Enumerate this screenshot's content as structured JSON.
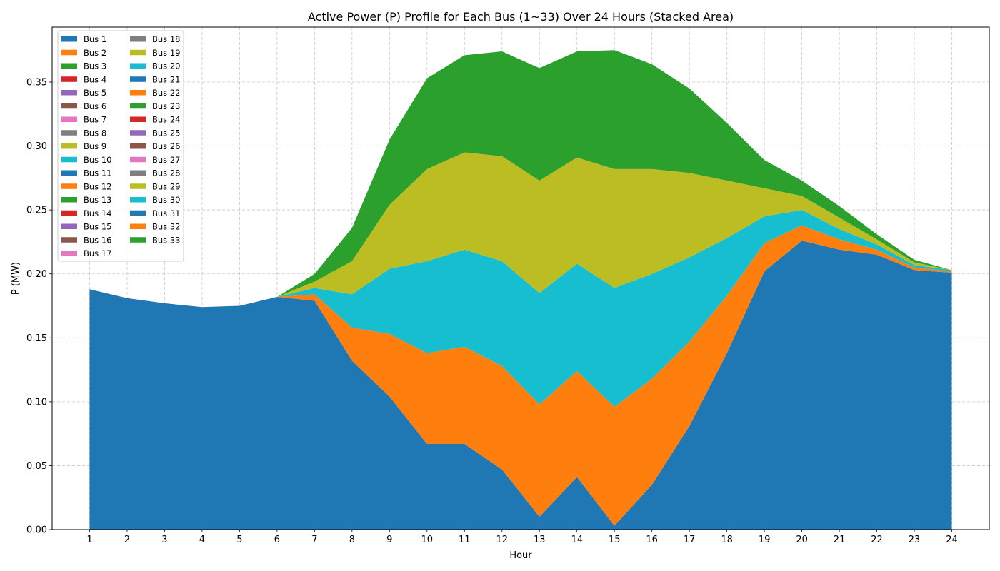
{
  "chart_data": {
    "type": "area",
    "stacked": true,
    "title": "Active Power (P) Profile for Each Bus (1~33) Over 24 Hours (Stacked Area)",
    "xlabel": "Hour",
    "ylabel": "P (MW)",
    "x": [
      1,
      2,
      3,
      4,
      5,
      6,
      7,
      8,
      9,
      10,
      11,
      12,
      13,
      14,
      15,
      16,
      17,
      18,
      19,
      20,
      21,
      22,
      23,
      24
    ],
    "xlim": [
      0,
      25
    ],
    "ylim": [
      0,
      0.393
    ],
    "yticks": [
      0.0,
      0.05,
      0.1,
      0.15,
      0.2,
      0.25,
      0.3,
      0.35
    ],
    "ytick_labels": [
      "0.00",
      "0.05",
      "0.10",
      "0.15",
      "0.20",
      "0.25",
      "0.30",
      "0.35"
    ],
    "grid": true,
    "legend_position": "top-left",
    "legend_columns": 2,
    "palette": [
      "#1f77b4",
      "#ff7f0e",
      "#2ca02c",
      "#d62728",
      "#9467bd",
      "#8c564b",
      "#e377c2",
      "#7f7f7f",
      "#bcbd22",
      "#17becf"
    ],
    "series": [
      {
        "name": "Bus 1",
        "values": [
          0.188,
          0.181,
          0.177,
          0.174,
          0.175,
          0.182,
          0.179,
          0.132,
          0.104,
          0.067,
          0.067,
          0.047,
          0.01,
          0.041,
          0.003,
          0.035,
          0.081,
          0.138,
          0.202,
          0.226,
          0.219,
          0.215,
          0.203,
          0.201
        ]
      },
      {
        "name": "Bus 2",
        "values": [
          0,
          0,
          0,
          0,
          0,
          0,
          0.005,
          0.026,
          0.049,
          0.071,
          0.076,
          0.081,
          0.088,
          0.083,
          0.093,
          0.083,
          0.066,
          0.045,
          0.022,
          0.012,
          0.008,
          0.004,
          0.002,
          0.001
        ]
      },
      {
        "name": "Bus 3",
        "values": [
          0,
          0,
          0,
          0,
          0,
          0,
          0,
          0,
          0,
          0,
          0,
          0,
          0,
          0,
          0,
          0,
          0,
          0,
          0,
          0,
          0,
          0,
          0,
          0
        ]
      },
      {
        "name": "Bus 4",
        "values": [
          0,
          0,
          0,
          0,
          0,
          0,
          0,
          0,
          0,
          0,
          0,
          0,
          0,
          0,
          0,
          0,
          0,
          0,
          0,
          0,
          0,
          0,
          0,
          0
        ]
      },
      {
        "name": "Bus 5",
        "values": [
          0,
          0,
          0,
          0,
          0,
          0,
          0,
          0,
          0,
          0,
          0,
          0,
          0,
          0,
          0,
          0,
          0,
          0,
          0,
          0,
          0,
          0,
          0,
          0
        ]
      },
      {
        "name": "Bus 6",
        "values": [
          0,
          0,
          0,
          0,
          0,
          0,
          0,
          0,
          0,
          0,
          0,
          0,
          0,
          0,
          0,
          0,
          0,
          0,
          0,
          0,
          0,
          0,
          0,
          0
        ]
      },
      {
        "name": "Bus 7",
        "values": [
          0,
          0,
          0,
          0,
          0,
          0,
          0,
          0,
          0,
          0,
          0,
          0,
          0,
          0,
          0,
          0,
          0,
          0,
          0,
          0,
          0,
          0,
          0,
          0
        ]
      },
      {
        "name": "Bus 8",
        "values": [
          0,
          0,
          0,
          0,
          0,
          0,
          0,
          0,
          0,
          0,
          0,
          0,
          0,
          0,
          0,
          0,
          0,
          0,
          0,
          0,
          0,
          0,
          0,
          0
        ]
      },
      {
        "name": "Bus 9",
        "values": [
          0,
          0,
          0,
          0,
          0,
          0,
          0,
          0,
          0,
          0,
          0,
          0,
          0,
          0,
          0,
          0,
          0,
          0,
          0,
          0,
          0,
          0,
          0,
          0
        ]
      },
      {
        "name": "Bus 10",
        "values": [
          0,
          0,
          0,
          0,
          0,
          0,
          0,
          0,
          0,
          0,
          0,
          0,
          0,
          0,
          0,
          0,
          0,
          0,
          0,
          0,
          0,
          0,
          0,
          0
        ]
      },
      {
        "name": "Bus 11",
        "values": [
          0,
          0,
          0,
          0,
          0,
          0,
          0,
          0,
          0,
          0,
          0,
          0,
          0,
          0,
          0,
          0,
          0,
          0,
          0,
          0,
          0,
          0,
          0,
          0
        ]
      },
      {
        "name": "Bus 12",
        "values": [
          0,
          0,
          0,
          0,
          0,
          0,
          0,
          0,
          0,
          0,
          0,
          0,
          0,
          0,
          0,
          0,
          0,
          0,
          0,
          0,
          0,
          0,
          0,
          0
        ]
      },
      {
        "name": "Bus 13",
        "values": [
          0,
          0,
          0,
          0,
          0,
          0,
          0,
          0,
          0,
          0,
          0,
          0,
          0,
          0,
          0,
          0,
          0,
          0,
          0,
          0,
          0,
          0,
          0,
          0
        ]
      },
      {
        "name": "Bus 14",
        "values": [
          0,
          0,
          0,
          0,
          0,
          0,
          0,
          0,
          0,
          0,
          0,
          0,
          0,
          0,
          0,
          0,
          0,
          0,
          0,
          0,
          0,
          0,
          0,
          0
        ]
      },
      {
        "name": "Bus 15",
        "values": [
          0,
          0,
          0,
          0,
          0,
          0,
          0,
          0,
          0,
          0,
          0,
          0,
          0,
          0,
          0,
          0,
          0,
          0,
          0,
          0,
          0,
          0,
          0,
          0
        ]
      },
      {
        "name": "Bus 16",
        "values": [
          0,
          0,
          0,
          0,
          0,
          0,
          0,
          0,
          0,
          0,
          0,
          0,
          0,
          0,
          0,
          0,
          0,
          0,
          0,
          0,
          0,
          0,
          0,
          0
        ]
      },
      {
        "name": "Bus 17",
        "values": [
          0,
          0,
          0,
          0,
          0,
          0,
          0,
          0,
          0,
          0,
          0,
          0,
          0,
          0,
          0,
          0,
          0,
          0,
          0,
          0,
          0,
          0,
          0,
          0
        ]
      },
      {
        "name": "Bus 18",
        "values": [
          0,
          0,
          0,
          0,
          0,
          0,
          0,
          0,
          0,
          0,
          0,
          0,
          0,
          0,
          0,
          0,
          0,
          0,
          0,
          0,
          0,
          0,
          0,
          0
        ]
      },
      {
        "name": "Bus 19",
        "values": [
          0,
          0,
          0,
          0,
          0,
          0,
          0,
          0,
          0,
          0,
          0,
          0,
          0,
          0,
          0,
          0,
          0,
          0,
          0,
          0,
          0,
          0,
          0,
          0
        ]
      },
      {
        "name": "Bus 20",
        "values": [
          0,
          0,
          0,
          0,
          0,
          0,
          0.005,
          0.026,
          0.051,
          0.072,
          0.076,
          0.082,
          0.087,
          0.084,
          0.093,
          0.082,
          0.066,
          0.045,
          0.021,
          0.012,
          0.008,
          0.004,
          0.002,
          0.001
        ]
      },
      {
        "name": "Bus 21",
        "values": [
          0,
          0,
          0,
          0,
          0,
          0,
          0,
          0,
          0,
          0,
          0,
          0,
          0,
          0,
          0,
          0,
          0,
          0,
          0,
          0,
          0,
          0,
          0,
          0
        ]
      },
      {
        "name": "Bus 22",
        "values": [
          0,
          0,
          0,
          0,
          0,
          0,
          0,
          0,
          0,
          0,
          0,
          0,
          0,
          0,
          0,
          0,
          0,
          0,
          0,
          0,
          0,
          0,
          0,
          0
        ]
      },
      {
        "name": "Bus 23",
        "values": [
          0,
          0,
          0,
          0,
          0,
          0,
          0,
          0,
          0,
          0,
          0,
          0,
          0,
          0,
          0,
          0,
          0,
          0,
          0,
          0,
          0,
          0,
          0,
          0
        ]
      },
      {
        "name": "Bus 24",
        "values": [
          0,
          0,
          0,
          0,
          0,
          0,
          0,
          0,
          0,
          0,
          0,
          0,
          0,
          0,
          0,
          0,
          0,
          0,
          0,
          0,
          0,
          0,
          0,
          0
        ]
      },
      {
        "name": "Bus 25",
        "values": [
          0,
          0,
          0,
          0,
          0,
          0,
          0,
          0,
          0,
          0,
          0,
          0,
          0,
          0,
          0,
          0,
          0,
          0,
          0,
          0,
          0,
          0,
          0,
          0
        ]
      },
      {
        "name": "Bus 26",
        "values": [
          0,
          0,
          0,
          0,
          0,
          0,
          0,
          0,
          0,
          0,
          0,
          0,
          0,
          0,
          0,
          0,
          0,
          0,
          0,
          0,
          0,
          0,
          0,
          0
        ]
      },
      {
        "name": "Bus 27",
        "values": [
          0,
          0,
          0,
          0,
          0,
          0,
          0,
          0,
          0,
          0,
          0,
          0,
          0,
          0,
          0,
          0,
          0,
          0,
          0,
          0,
          0,
          0,
          0,
          0
        ]
      },
      {
        "name": "Bus 28",
        "values": [
          0,
          0,
          0,
          0,
          0,
          0,
          0,
          0,
          0,
          0,
          0,
          0,
          0,
          0,
          0,
          0,
          0,
          0,
          0,
          0,
          0,
          0,
          0,
          0
        ]
      },
      {
        "name": "Bus 29",
        "values": [
          0,
          0,
          0,
          0,
          0,
          0,
          0.005,
          0.026,
          0.05,
          0.072,
          0.076,
          0.082,
          0.088,
          0.083,
          0.093,
          0.082,
          0.066,
          0.045,
          0.022,
          0.011,
          0.009,
          0.004,
          0.002,
          0.0
        ]
      },
      {
        "name": "Bus 30",
        "values": [
          0,
          0,
          0,
          0,
          0,
          0,
          0,
          0,
          0,
          0,
          0,
          0,
          0,
          0,
          0,
          0,
          0,
          0,
          0,
          0,
          0,
          0,
          0,
          0
        ]
      },
      {
        "name": "Bus 31",
        "values": [
          0,
          0,
          0,
          0,
          0,
          0,
          0,
          0,
          0,
          0,
          0,
          0,
          0,
          0,
          0,
          0,
          0,
          0,
          0,
          0,
          0,
          0,
          0,
          0
        ]
      },
      {
        "name": "Bus 32",
        "values": [
          0,
          0,
          0,
          0,
          0,
          0,
          0,
          0,
          0,
          0,
          0,
          0,
          0,
          0,
          0,
          0,
          0,
          0,
          0,
          0,
          0,
          0,
          0,
          0
        ]
      },
      {
        "name": "Bus 33",
        "values": [
          0,
          0,
          0,
          0,
          0,
          0,
          0.006,
          0.026,
          0.051,
          0.071,
          0.076,
          0.082,
          0.088,
          0.083,
          0.093,
          0.082,
          0.066,
          0.045,
          0.022,
          0.012,
          0.009,
          0.004,
          0.002,
          0.0
        ]
      }
    ]
  }
}
